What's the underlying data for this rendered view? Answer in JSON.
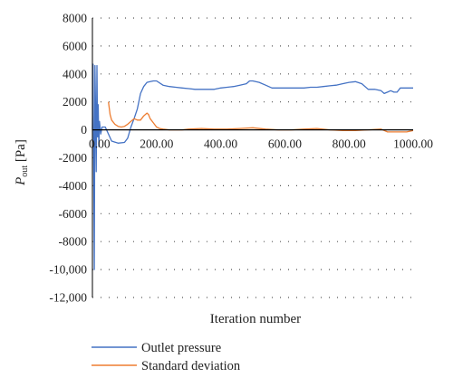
{
  "chart_data": {
    "type": "line",
    "xlabel": "Iteration number",
    "ylabel_main": "P",
    "ylabel_sub": "out",
    "ylabel_unit": " [Pa]",
    "xlim": [
      0,
      1000
    ],
    "ylim": [
      -12000,
      8000
    ],
    "x_ticks": [
      0,
      200,
      400,
      600,
      800,
      1000
    ],
    "x_tick_labels": [
      "0.00",
      "200.00",
      "400.00",
      "600.00",
      "800.00",
      "1000.00"
    ],
    "y_ticks": [
      8000,
      6000,
      4000,
      2000,
      0,
      -2000,
      -4000,
      -6000,
      -8000,
      -10000,
      -12000
    ],
    "y_tick_labels": [
      "8000",
      "6000",
      "4000",
      "2000",
      "0",
      "-2000",
      "-4000",
      "-6000",
      "-8000",
      "-10,000",
      "-12,000"
    ],
    "grid": "horizontal-dotted",
    "legend_position": "bottom-left",
    "series": [
      {
        "name": "Outlet pressure",
        "color": "#4472c4",
        "x": [
          0,
          2,
          4,
          6,
          8,
          10,
          12,
          14,
          16,
          18,
          20,
          22,
          26,
          30,
          40,
          60,
          80,
          100,
          110,
          120,
          130,
          140,
          150,
          160,
          170,
          180,
          190,
          200,
          220,
          240,
          260,
          280,
          300,
          320,
          340,
          360,
          380,
          400,
          420,
          440,
          460,
          480,
          490,
          500,
          520,
          540,
          560,
          580,
          600,
          620,
          640,
          660,
          680,
          700,
          720,
          740,
          760,
          780,
          800,
          820,
          840,
          860,
          880,
          900,
          910,
          920,
          930,
          940,
          950,
          960,
          980,
          1000
        ],
        "y": [
          0,
          4700,
          -2000,
          -10000,
          4600,
          1500,
          -3000,
          4600,
          -500,
          1800,
          -1200,
          600,
          -300,
          200,
          200,
          -800,
          -950,
          -900,
          -600,
          200,
          800,
          1500,
          2600,
          3100,
          3400,
          3450,
          3500,
          3500,
          3200,
          3100,
          3050,
          3000,
          2950,
          2900,
          2900,
          2900,
          2900,
          3000,
          3050,
          3100,
          3200,
          3300,
          3500,
          3500,
          3400,
          3200,
          3000,
          3000,
          3000,
          3000,
          3000,
          3000,
          3050,
          3050,
          3100,
          3150,
          3200,
          3300,
          3400,
          3450,
          3300,
          2900,
          2900,
          2800,
          2600,
          2700,
          2800,
          2700,
          2700,
          3000,
          3000,
          3000
        ]
      },
      {
        "name": "Standard deviation",
        "color": "#ed7d31",
        "x": [
          50,
          55,
          60,
          70,
          80,
          90,
          100,
          110,
          120,
          130,
          140,
          150,
          160,
          170,
          175,
          180,
          190,
          200,
          210,
          220,
          240,
          260,
          280,
          300,
          340,
          380,
          420,
          460,
          500,
          540,
          580,
          620,
          660,
          700,
          740,
          780,
          820,
          860,
          900,
          920,
          940,
          960,
          980,
          1000
        ],
        "y": [
          2000,
          1100,
          700,
          400,
          250,
          200,
          250,
          400,
          600,
          800,
          700,
          700,
          1000,
          1200,
          1100,
          800,
          500,
          200,
          100,
          50,
          0,
          0,
          0,
          50,
          100,
          50,
          50,
          100,
          150,
          50,
          0,
          0,
          50,
          100,
          0,
          -50,
          -50,
          0,
          50,
          -150,
          -150,
          -150,
          -150,
          -50
        ]
      }
    ]
  }
}
